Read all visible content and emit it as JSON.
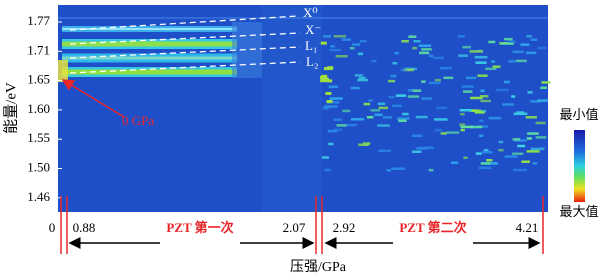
{
  "chart_data": {
    "type": "heatmap",
    "ylabel": "能量/eV",
    "xlabel": "压强/GPa",
    "yticks": [
      1.77,
      1.71,
      1.65,
      {
        "value": 1.6,
        "label": "1.60"
      },
      1.55,
      {
        "value": 1.5,
        "label": "1.50"
      },
      1.46
    ],
    "xticks": [
      0,
      0.88,
      2.07,
      2.92,
      4.21
    ],
    "segments": [
      "PZT 第一次",
      "PZT 第二次"
    ],
    "peak_labels": [
      "X⁰",
      "X⁻",
      "L₁",
      "L₂"
    ],
    "annotation": "0 GPa",
    "colorbar": {
      "min_label": "最小值",
      "max_label": "最大值"
    }
  }
}
